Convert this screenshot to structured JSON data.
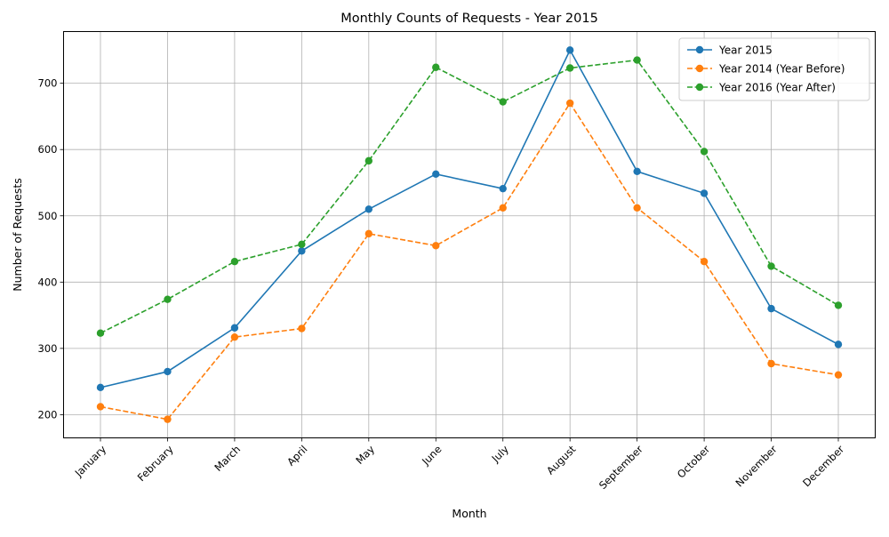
{
  "chart_data": {
    "type": "line",
    "title": "Monthly Counts of Requests - Year 2015",
    "xlabel": "Month",
    "ylabel": "Number of Requests",
    "categories": [
      "January",
      "February",
      "March",
      "April",
      "May",
      "June",
      "July",
      "August",
      "September",
      "October",
      "November",
      "December"
    ],
    "ylim": [
      165,
      778
    ],
    "yticks": [
      200,
      300,
      400,
      500,
      600,
      700
    ],
    "grid": true,
    "legend_position": "top-right",
    "series": [
      {
        "name": "Year 2015",
        "color": "#1f77b4",
        "linestyle": "solid",
        "marker": "circle",
        "values": [
          241,
          265,
          331,
          447,
          510,
          563,
          541,
          750,
          567,
          534,
          360,
          306
        ]
      },
      {
        "name": "Year 2014 (Year Before)",
        "color": "#ff7f0e",
        "linestyle": "dashed",
        "marker": "circle",
        "values": [
          212,
          193,
          317,
          330,
          473,
          455,
          512,
          670,
          512,
          431,
          277,
          260
        ]
      },
      {
        "name": "Year 2016 (Year After)",
        "color": "#2ca02c",
        "linestyle": "dashed",
        "marker": "circle",
        "values": [
          323,
          374,
          431,
          457,
          583,
          724,
          672,
          723,
          735,
          597,
          424,
          365
        ]
      }
    ]
  }
}
